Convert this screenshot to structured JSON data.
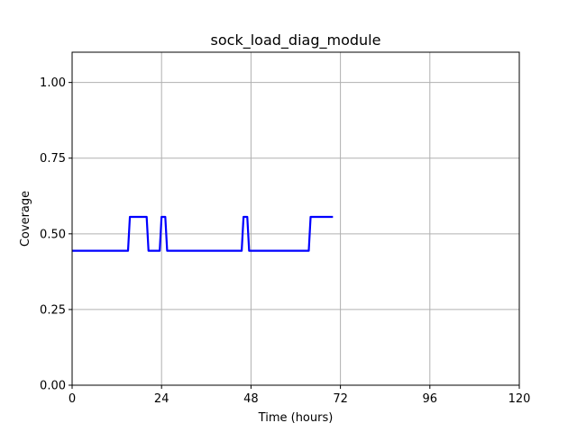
{
  "chart_data": {
    "type": "line",
    "title": "sock_load_diag_module",
    "xlabel": "Time (hours)",
    "ylabel": "Coverage",
    "xlim": [
      0,
      120
    ],
    "ylim": [
      0,
      1.1
    ],
    "xticks": [
      0,
      24,
      48,
      72,
      96,
      120
    ],
    "yticks": [
      0.0,
      0.25,
      0.5,
      0.75,
      1.0
    ],
    "xtick_labels": [
      "0",
      "24",
      "48",
      "72",
      "96",
      "120"
    ],
    "ytick_labels": [
      "0.00",
      "0.25",
      "0.50",
      "0.75",
      "1.00"
    ],
    "grid": true,
    "series": [
      {
        "color": "#0000ff",
        "x": [
          0,
          15,
          15.5,
          20,
          20.5,
          23.5,
          24,
          25,
          25.5,
          45.5,
          46,
          47,
          47.5,
          63.5,
          64,
          70
        ],
        "y": [
          0.444,
          0.444,
          0.556,
          0.556,
          0.444,
          0.444,
          0.556,
          0.556,
          0.444,
          0.444,
          0.556,
          0.556,
          0.444,
          0.444,
          0.556,
          0.556
        ]
      }
    ]
  }
}
